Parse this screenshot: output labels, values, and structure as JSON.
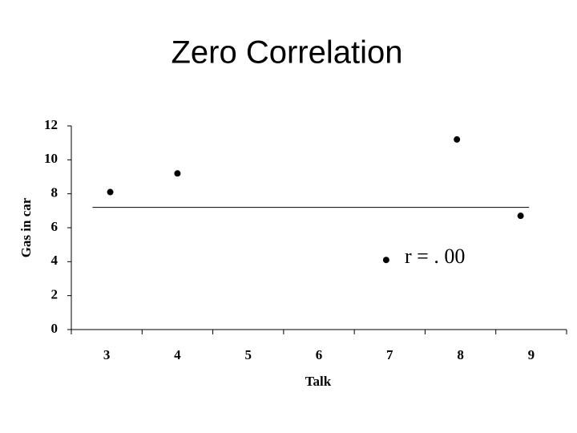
{
  "chart_data": {
    "type": "scatter",
    "title": "Zero Correlation",
    "xlabel": "Talk",
    "ylabel": "Gas in car",
    "x": [
      3.05,
      4,
      6.95,
      7.95,
      8.85
    ],
    "values": [
      8.1,
      9.2,
      4.1,
      11.2,
      6.7
    ],
    "color": "#000000",
    "line": {
      "x": [
        2.8,
        8.97
      ],
      "y": [
        7.2,
        7.2
      ],
      "color": "#000000"
    },
    "annotation": "r = . 00",
    "xlim": [
      2.5,
      9.5
    ],
    "xticks": [
      3,
      4,
      5,
      6,
      7,
      8,
      9
    ],
    "ylim": [
      0,
      12
    ],
    "yticks": [
      0,
      2,
      4,
      6,
      8,
      10,
      12
    ]
  }
}
